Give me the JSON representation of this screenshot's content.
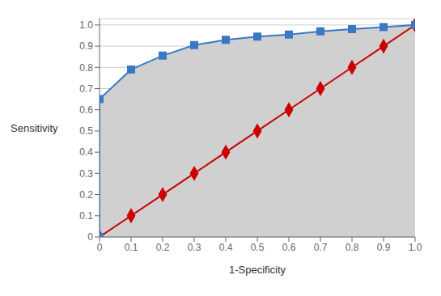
{
  "chart_data": {
    "type": "line",
    "xlabel": "1-Specificity",
    "ylabel": "Sensitivity",
    "xlim": [
      0,
      1.0
    ],
    "ylim": [
      0,
      1.03
    ],
    "xticks": [
      0,
      0.1,
      0.2,
      0.3,
      0.4,
      0.5,
      0.6,
      0.7,
      0.8,
      0.9,
      {
        "value": 1.0,
        "label": "1.0"
      }
    ],
    "yticks": [
      0,
      0.1,
      0.2,
      0.3,
      0.4,
      0.5,
      0.6,
      0.7,
      0.8,
      0.9,
      {
        "value": 1.0,
        "label": "1.0"
      }
    ],
    "grid": true,
    "series": [
      {
        "type": "area",
        "color": "#D0D0D0",
        "x": [
          0,
          0,
          0.1,
          0.2,
          0.3,
          0.4,
          0.5,
          0.6,
          0.7,
          0.8,
          0.9,
          1.0
        ],
        "values": [
          0,
          0.65,
          0.79,
          0.855,
          0.905,
          0.93,
          0.945,
          0.955,
          0.97,
          0.98,
          0.99,
          1.0
        ]
      },
      {
        "type": "line",
        "color": "#CC0000",
        "marker": "diamond",
        "x": [
          0,
          0.1,
          0.2,
          0.3,
          0.4,
          0.5,
          0.6,
          0.7,
          0.8,
          0.9,
          1.0
        ],
        "values": [
          0,
          0.1,
          0.2,
          0.3,
          0.4,
          0.5,
          0.6,
          0.7,
          0.8,
          0.9,
          1.0
        ]
      },
      {
        "type": "line",
        "color": "#3B78C4",
        "marker": "square",
        "x": [
          0,
          0,
          0.1,
          0.2,
          0.3,
          0.4,
          0.5,
          0.6,
          0.7,
          0.8,
          0.9,
          1.0
        ],
        "values": [
          0,
          0.65,
          0.79,
          0.855,
          0.905,
          0.93,
          0.945,
          0.955,
          0.97,
          0.98,
          0.99,
          1.0
        ]
      }
    ]
  }
}
